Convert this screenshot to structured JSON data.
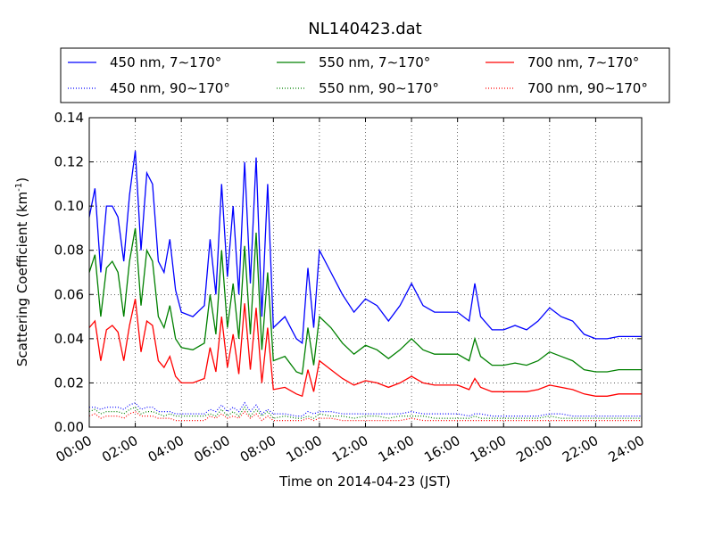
{
  "chart_data": {
    "type": "line",
    "title": "NL140423.dat",
    "xlabel": "Time on 2014-04-23 (JST)",
    "ylabel": "Scattering Coefficient (km",
    "ylabel_sup": "-1",
    "ylabel_end": ")",
    "xlim": [
      0,
      24
    ],
    "ylim": [
      0,
      0.14
    ],
    "grid": true,
    "legend_position": "top",
    "x_ticks": [
      0,
      2,
      4,
      6,
      8,
      10,
      12,
      14,
      16,
      18,
      20,
      22,
      24
    ],
    "x_tick_labels": [
      "00:00",
      "02:00",
      "04:00",
      "06:00",
      "08:00",
      "10:00",
      "12:00",
      "14:00",
      "16:00",
      "18:00",
      "20:00",
      "22:00",
      "24:00"
    ],
    "y_ticks": [
      0.0,
      0.02,
      0.04,
      0.06,
      0.08,
      0.1,
      0.12,
      0.14
    ],
    "y_tick_labels": [
      "0.00",
      "0.02",
      "0.04",
      "0.06",
      "0.08",
      "0.10",
      "0.12",
      "0.14"
    ],
    "x": [
      0,
      0.25,
      0.5,
      0.75,
      1,
      1.25,
      1.5,
      1.75,
      2,
      2.25,
      2.5,
      2.75,
      3,
      3.25,
      3.5,
      3.75,
      4,
      4.5,
      5,
      5.25,
      5.5,
      5.75,
      6,
      6.25,
      6.5,
      6.75,
      7,
      7.25,
      7.5,
      7.75,
      8,
      8.5,
      9,
      9.25,
      9.5,
      9.75,
      10,
      10.5,
      11,
      11.5,
      12,
      12.5,
      13,
      13.5,
      14,
      14.5,
      15,
      15.5,
      16,
      16.5,
      16.75,
      17,
      17.5,
      18,
      18.5,
      19,
      19.5,
      20,
      20.5,
      21,
      21.5,
      22,
      22.5,
      23,
      23.5,
      24
    ],
    "series": [
      {
        "name": "450 nm, 7∼170°",
        "color": "#0000ff",
        "style": "solid",
        "values": [
          0.095,
          0.108,
          0.07,
          0.1,
          0.1,
          0.095,
          0.075,
          0.105,
          0.125,
          0.08,
          0.115,
          0.11,
          0.075,
          0.07,
          0.085,
          0.062,
          0.052,
          0.05,
          0.055,
          0.085,
          0.06,
          0.11,
          0.068,
          0.1,
          0.06,
          0.12,
          0.065,
          0.122,
          0.05,
          0.11,
          0.045,
          0.05,
          0.04,
          0.038,
          0.072,
          0.045,
          0.08,
          0.07,
          0.06,
          0.052,
          0.058,
          0.055,
          0.048,
          0.055,
          0.065,
          0.055,
          0.052,
          0.052,
          0.052,
          0.048,
          0.065,
          0.05,
          0.044,
          0.044,
          0.046,
          0.044,
          0.048,
          0.054,
          0.05,
          0.048,
          0.042,
          0.04,
          0.04,
          0.041,
          0.041,
          0.041
        ]
      },
      {
        "name": "550 nm, 7∼170°",
        "color": "#008000",
        "style": "solid",
        "values": [
          0.07,
          0.078,
          0.05,
          0.072,
          0.075,
          0.07,
          0.05,
          0.075,
          0.09,
          0.055,
          0.08,
          0.075,
          0.05,
          0.045,
          0.055,
          0.04,
          0.036,
          0.035,
          0.038,
          0.06,
          0.042,
          0.08,
          0.045,
          0.065,
          0.04,
          0.082,
          0.042,
          0.088,
          0.035,
          0.07,
          0.03,
          0.032,
          0.025,
          0.024,
          0.045,
          0.028,
          0.05,
          0.045,
          0.038,
          0.033,
          0.037,
          0.035,
          0.031,
          0.035,
          0.04,
          0.035,
          0.033,
          0.033,
          0.033,
          0.03,
          0.04,
          0.032,
          0.028,
          0.028,
          0.029,
          0.028,
          0.03,
          0.034,
          0.032,
          0.03,
          0.026,
          0.025,
          0.025,
          0.026,
          0.026,
          0.026
        ]
      },
      {
        "name": "700 nm, 7∼170°",
        "color": "#ff0000",
        "style": "solid",
        "values": [
          0.045,
          0.048,
          0.03,
          0.044,
          0.046,
          0.043,
          0.03,
          0.046,
          0.058,
          0.034,
          0.048,
          0.046,
          0.03,
          0.027,
          0.032,
          0.023,
          0.02,
          0.02,
          0.022,
          0.036,
          0.025,
          0.05,
          0.027,
          0.042,
          0.024,
          0.056,
          0.026,
          0.054,
          0.02,
          0.045,
          0.017,
          0.018,
          0.015,
          0.014,
          0.026,
          0.016,
          0.03,
          0.026,
          0.022,
          0.019,
          0.021,
          0.02,
          0.018,
          0.02,
          0.023,
          0.02,
          0.019,
          0.019,
          0.019,
          0.017,
          0.022,
          0.018,
          0.016,
          0.016,
          0.016,
          0.016,
          0.017,
          0.019,
          0.018,
          0.017,
          0.015,
          0.014,
          0.014,
          0.015,
          0.015,
          0.015
        ]
      },
      {
        "name": "450 nm, 90∼170°",
        "color": "#0000ff",
        "style": "dotted",
        "values": [
          0.009,
          0.009,
          0.008,
          0.009,
          0.009,
          0.009,
          0.008,
          0.01,
          0.011,
          0.008,
          0.009,
          0.009,
          0.007,
          0.007,
          0.007,
          0.006,
          0.006,
          0.006,
          0.006,
          0.008,
          0.007,
          0.01,
          0.007,
          0.009,
          0.007,
          0.011,
          0.007,
          0.01,
          0.006,
          0.008,
          0.006,
          0.006,
          0.005,
          0.005,
          0.007,
          0.006,
          0.007,
          0.007,
          0.006,
          0.006,
          0.006,
          0.006,
          0.006,
          0.006,
          0.007,
          0.006,
          0.006,
          0.006,
          0.006,
          0.005,
          0.006,
          0.006,
          0.005,
          0.005,
          0.005,
          0.005,
          0.005,
          0.006,
          0.006,
          0.005,
          0.005,
          0.005,
          0.005,
          0.005,
          0.005,
          0.005
        ]
      },
      {
        "name": "550 nm, 90∼170°",
        "color": "#008000",
        "style": "dotted",
        "values": [
          0.007,
          0.008,
          0.006,
          0.007,
          0.007,
          0.007,
          0.006,
          0.008,
          0.009,
          0.006,
          0.007,
          0.007,
          0.006,
          0.005,
          0.006,
          0.005,
          0.005,
          0.005,
          0.005,
          0.006,
          0.005,
          0.008,
          0.005,
          0.007,
          0.005,
          0.009,
          0.005,
          0.008,
          0.005,
          0.007,
          0.004,
          0.005,
          0.004,
          0.004,
          0.005,
          0.004,
          0.006,
          0.005,
          0.005,
          0.004,
          0.005,
          0.005,
          0.004,
          0.005,
          0.005,
          0.005,
          0.004,
          0.004,
          0.004,
          0.004,
          0.005,
          0.004,
          0.004,
          0.004,
          0.004,
          0.004,
          0.004,
          0.005,
          0.004,
          0.004,
          0.004,
          0.004,
          0.004,
          0.004,
          0.004,
          0.004
        ]
      },
      {
        "name": "700 nm, 90∼170°",
        "color": "#ff0000",
        "style": "dotted",
        "values": [
          0.005,
          0.006,
          0.004,
          0.005,
          0.005,
          0.005,
          0.004,
          0.006,
          0.007,
          0.005,
          0.005,
          0.005,
          0.004,
          0.004,
          0.004,
          0.003,
          0.003,
          0.003,
          0.003,
          0.005,
          0.004,
          0.006,
          0.004,
          0.005,
          0.004,
          0.007,
          0.004,
          0.006,
          0.003,
          0.005,
          0.003,
          0.003,
          0.003,
          0.003,
          0.004,
          0.003,
          0.004,
          0.004,
          0.003,
          0.003,
          0.003,
          0.003,
          0.003,
          0.003,
          0.004,
          0.003,
          0.003,
          0.003,
          0.003,
          0.003,
          0.003,
          0.003,
          0.003,
          0.003,
          0.003,
          0.003,
          0.003,
          0.003,
          0.003,
          0.003,
          0.003,
          0.003,
          0.003,
          0.003,
          0.003,
          0.003
        ]
      }
    ],
    "legend_order": [
      0,
      1,
      2,
      3,
      4,
      5
    ]
  }
}
